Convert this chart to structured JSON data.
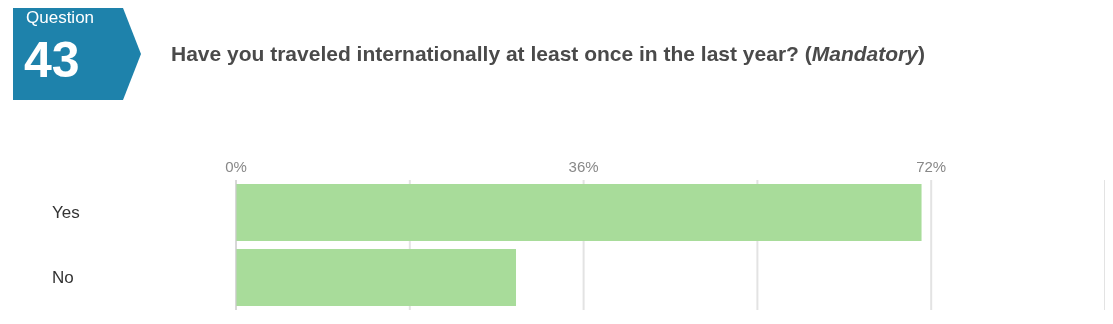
{
  "chart_data": {
    "type": "bar",
    "orientation": "horizontal",
    "title": "Have you traveled internationally at least once in the last year? (Mandatory)",
    "annotations": [
      "Question",
      "43"
    ],
    "categories": [
      "Yes",
      "No"
    ],
    "values": [
      71,
      29
    ],
    "color": "#a8dc9a",
    "xlim": [
      0,
      90
    ],
    "xticks": [
      {
        "value": 0,
        "label": "0%"
      },
      {
        "value": 18,
        "label": null
      },
      {
        "value": 36,
        "label": "36%"
      },
      {
        "value": 54,
        "label": null
      },
      {
        "value": 72,
        "label": "72%"
      }
    ],
    "grid": "x",
    "legend": false
  }
}
